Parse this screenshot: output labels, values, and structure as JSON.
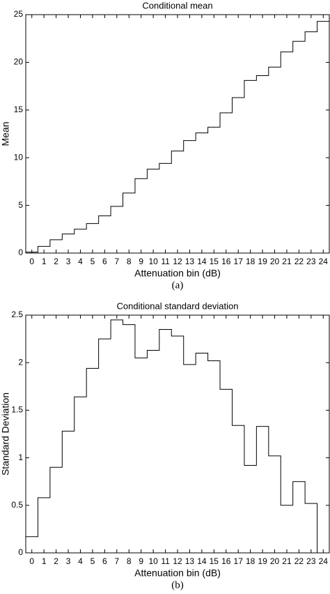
{
  "chart_data": [
    {
      "type": "step",
      "title": "Conditional mean",
      "x_label": "Attenuation bin (dB)",
      "y_label": "Mean",
      "caption": "(a)",
      "categories": [
        "0",
        "1",
        "2",
        "3",
        "4",
        "5",
        "6",
        "7",
        "8",
        "9",
        "10",
        "11",
        "12",
        "13",
        "14",
        "15",
        "16",
        "17",
        "18",
        "19",
        "20",
        "21",
        "22",
        "23",
        "24"
      ],
      "values": [
        0.1,
        0.7,
        1.4,
        2.0,
        2.5,
        3.1,
        3.9,
        4.9,
        6.3,
        7.8,
        8.8,
        9.4,
        10.7,
        11.8,
        12.6,
        13.2,
        14.7,
        16.3,
        18.1,
        18.6,
        19.5,
        21.1,
        22.2,
        23.2,
        24.3
      ],
      "color": "#000000",
      "ylim": [
        0,
        25
      ],
      "yticks": [
        0,
        5,
        10,
        15,
        20,
        25
      ]
    },
    {
      "type": "step",
      "title": "Conditional standard deviation",
      "x_label": "Attenuation bin (dB)",
      "y_label": "Standard Deviation",
      "caption": "(b)",
      "categories": [
        "0",
        "1",
        "2",
        "3",
        "4",
        "5",
        "6",
        "7",
        "8",
        "9",
        "10",
        "11",
        "12",
        "13",
        "14",
        "15",
        "16",
        "17",
        "18",
        "19",
        "20",
        "21",
        "22",
        "23",
        "24"
      ],
      "values": [
        0.17,
        0.58,
        0.9,
        1.28,
        1.64,
        1.94,
        2.25,
        2.45,
        2.4,
        2.05,
        2.13,
        2.35,
        2.28,
        1.98,
        2.1,
        2.02,
        1.72,
        1.34,
        0.92,
        1.33,
        1.02,
        0.5,
        0.75,
        0.52,
        0
      ],
      "color": "#000000",
      "ylim": [
        0,
        2.5
      ],
      "yticks": [
        0,
        0.5,
        1,
        1.5,
        2,
        2.5
      ]
    }
  ]
}
